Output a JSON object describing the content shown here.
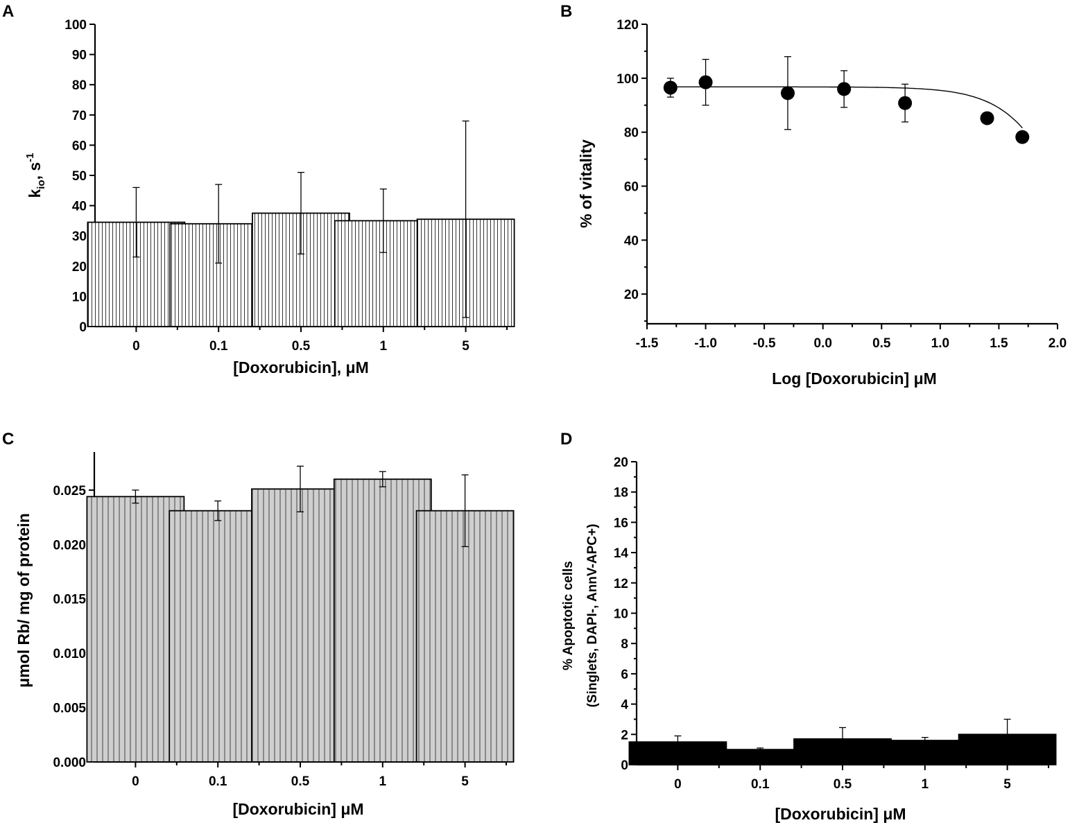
{
  "chart_data": [
    {
      "panel": "A",
      "type": "bar",
      "categories": [
        "0",
        "0.1",
        "0.5",
        "1",
        "5"
      ],
      "values": [
        34.5,
        34.0,
        37.5,
        35.0,
        35.5
      ],
      "errors": [
        11.5,
        13.0,
        13.5,
        10.5,
        32.5
      ],
      "xlabel": "[Doxorubicin], μM",
      "ylabel_main": "k",
      "ylabel_sub": "io",
      "ylabel_tail": ", s",
      "ylabel_sup": "-1",
      "ylim": [
        0,
        100
      ],
      "yticks": [
        "0",
        "10",
        "20",
        "30",
        "40",
        "50",
        "60",
        "70",
        "80",
        "90",
        "100"
      ],
      "fill": "vertical-hatch-white"
    },
    {
      "panel": "B",
      "type": "scatter",
      "x": [
        -1.3,
        -1.0,
        -0.3,
        0.18,
        0.7,
        1.4,
        1.7
      ],
      "values": [
        96.5,
        98.5,
        94.5,
        96.0,
        90.8,
        85.2,
        78.2
      ],
      "errors": [
        3.5,
        8.5,
        13.5,
        6.8,
        7.0,
        0,
        0
      ],
      "fit": "sigmoidal curve",
      "xlabel": "Log [Doxorubicin] μM",
      "ylabel": "% of vitality",
      "xlim": [
        -1.5,
        2.0
      ],
      "ylim": [
        9,
        120
      ],
      "xticks": [
        "-1.5",
        "-1.0",
        "-0.5",
        "0.0",
        "0.5",
        "1.0",
        "1.5",
        "2.0"
      ],
      "yticks": [
        "20",
        "40",
        "60",
        "80",
        "100",
        "120"
      ]
    },
    {
      "panel": "C",
      "type": "bar",
      "categories": [
        "0",
        "0.1",
        "0.5",
        "1",
        "5"
      ],
      "values": [
        0.0244,
        0.0231,
        0.0251,
        0.026,
        0.0231
      ],
      "errors": [
        0.0006,
        0.0009,
        0.0021,
        0.0007,
        0.0033
      ],
      "xlabel": "[Doxorubicin] μM",
      "ylabel": "μmol Rb/ mg of protein",
      "ylim": [
        0,
        0.0285
      ],
      "yticks": [
        "0.000",
        "0.005",
        "0.010",
        "0.015",
        "0.020",
        "0.025"
      ],
      "fill": "vertical-hatch-gray"
    },
    {
      "panel": "D",
      "type": "bar",
      "categories": [
        "0",
        "0.1",
        "0.5",
        "1",
        "5"
      ],
      "values": [
        1.5,
        1.0,
        1.7,
        1.6,
        2.0
      ],
      "errors": [
        0.4,
        0.1,
        0.75,
        0.2,
        1.0
      ],
      "xlabel": "[Doxorubicin] μM",
      "ylabel_line1": "% Apoptotic cells",
      "ylabel_line2": "(Singlets, DAPI-, AnnV-APC+)",
      "ylim": [
        0,
        20
      ],
      "yticks": [
        "0",
        "2",
        "4",
        "6",
        "8",
        "10",
        "12",
        "14",
        "16",
        "18",
        "20"
      ],
      "fill": "solid-black"
    }
  ],
  "colors": {
    "ink": "#000000",
    "gray_bar": "#cfcfcf",
    "white": "#ffffff"
  }
}
